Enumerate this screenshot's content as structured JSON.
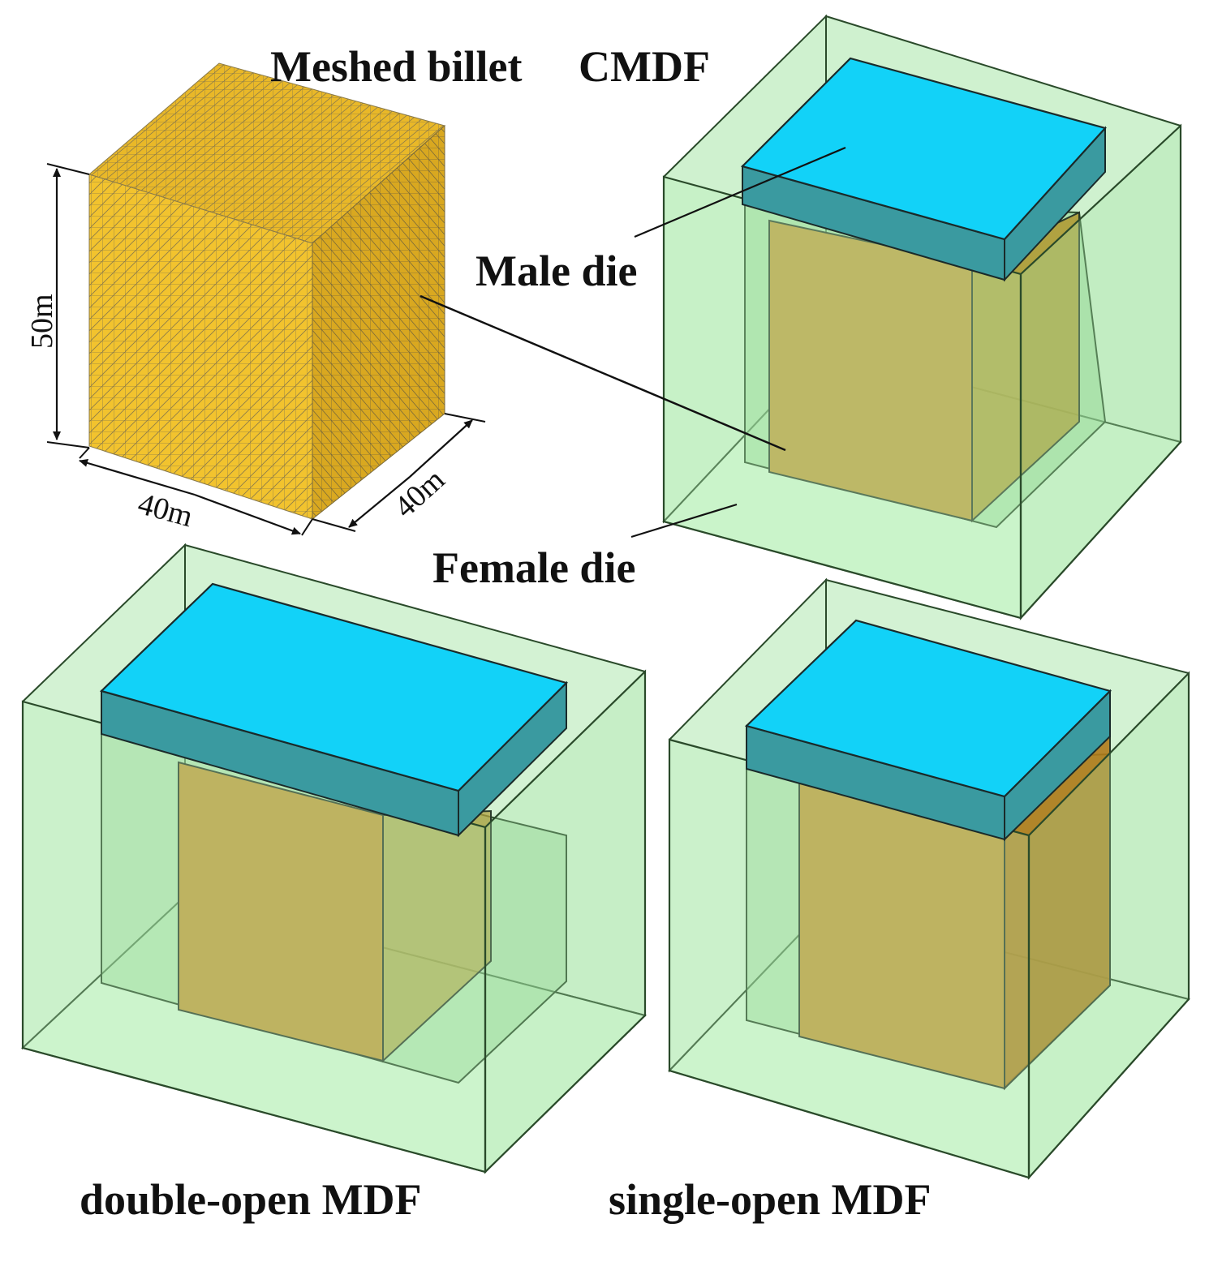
{
  "labels": {
    "meshed_billet": "Meshed billet",
    "cmdf": "CMDF",
    "male_die": "Male die",
    "female_die": "Female die",
    "double_open": "double-open MDF",
    "single_open": "single-open MDF"
  },
  "dimensions": {
    "height": "50m",
    "width": "40m",
    "depth": "40m"
  },
  "colors": {
    "billet": "#f2c32e",
    "billet_side": "#d9a820",
    "mesh_line": "#8a7a4a",
    "male_top": "#12d2f8",
    "male_side": "#3a9aa0",
    "female_fill": "#a8e6a8",
    "female_inner": "#8cd08c",
    "workpiece": "#c19a3c",
    "workpiece_side": "#b08a2a",
    "outline": "#1a2a1a"
  }
}
